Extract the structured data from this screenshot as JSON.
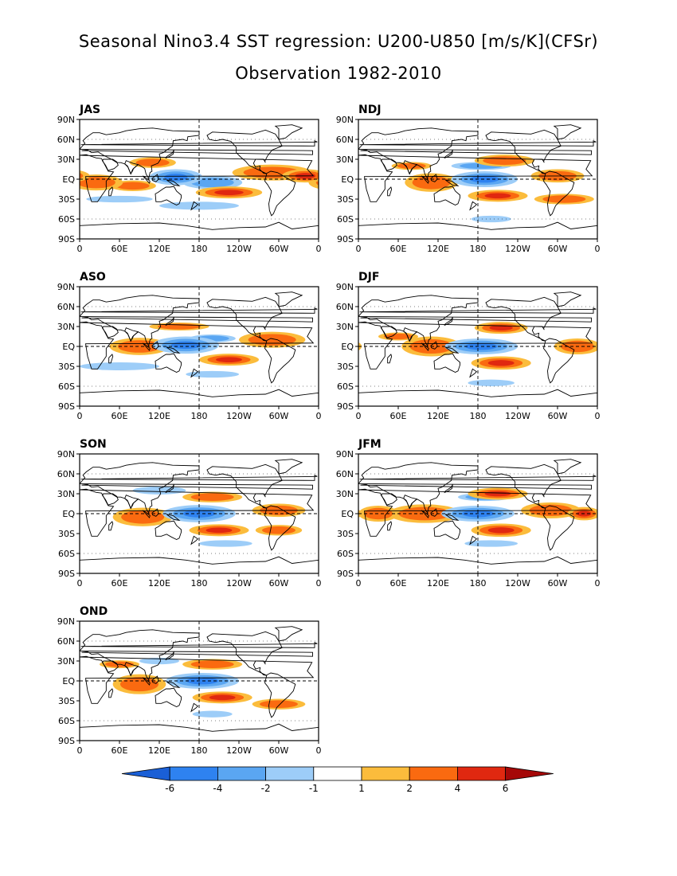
{
  "title": "Seasonal Nino3.4 SST regression: U200-U850 [m/s/K](CFSr)",
  "subtitle": "Observation 1982-2010",
  "chart_data": {
    "type": "heatmap",
    "lat_ticks": [
      "90N",
      "60N",
      "30N",
      "EQ",
      "30S",
      "60S",
      "90S"
    ],
    "lon_ticks": [
      "0",
      "60E",
      "120E",
      "180",
      "120W",
      "60W",
      "0"
    ],
    "colorbar": {
      "levels": [
        "-6",
        "-4",
        "-2",
        "-1",
        "1",
        "2",
        "4",
        "6"
      ],
      "colors": [
        "#1a5fd6",
        "#2e82f0",
        "#5aa6f2",
        "#9dcdf8",
        "#ffffff",
        "#fbbc3c",
        "#fa6a10",
        "#e02810",
        "#a50808"
      ]
    },
    "panels": [
      {
        "season": "JAS",
        "blobs": [
          {
            "lon": 145,
            "lat": 3,
            "rx": 40,
            "ry": 12,
            "v": -4
          },
          {
            "lon": 200,
            "lat": -5,
            "rx": 45,
            "ry": 10,
            "v": -2
          },
          {
            "lon": 290,
            "lat": 10,
            "rx": 60,
            "ry": 12,
            "v": 3
          },
          {
            "lon": 340,
            "lat": 5,
            "rx": 35,
            "ry": 10,
            "v": 4
          },
          {
            "lon": 25,
            "lat": -5,
            "rx": 40,
            "ry": 12,
            "v": 3
          },
          {
            "lon": 80,
            "lat": -10,
            "rx": 35,
            "ry": 8,
            "v": 2
          },
          {
            "lon": 110,
            "lat": 25,
            "rx": 35,
            "ry": 8,
            "v": 2
          },
          {
            "lon": 225,
            "lat": -20,
            "rx": 50,
            "ry": 9,
            "v": 4
          },
          {
            "lon": 180,
            "lat": -40,
            "rx": 60,
            "ry": 6,
            "v": -1.5
          },
          {
            "lon": 60,
            "lat": -30,
            "rx": 50,
            "ry": 5,
            "v": -1.5
          }
        ]
      },
      {
        "season": "NDJ",
        "blobs": [
          {
            "lon": 190,
            "lat": 0,
            "rx": 50,
            "ry": 12,
            "v": -4
          },
          {
            "lon": 185,
            "lat": 20,
            "rx": 45,
            "ry": 6,
            "v": -2
          },
          {
            "lon": 210,
            "lat": -25,
            "rx": 45,
            "ry": 9,
            "v": 4
          },
          {
            "lon": 220,
            "lat": 28,
            "rx": 45,
            "ry": 9,
            "v": 3
          },
          {
            "lon": 110,
            "lat": -5,
            "rx": 40,
            "ry": 14,
            "v": 3
          },
          {
            "lon": 300,
            "lat": 5,
            "rx": 40,
            "ry": 10,
            "v": 2
          },
          {
            "lon": 80,
            "lat": 20,
            "rx": 30,
            "ry": 6,
            "v": 2
          },
          {
            "lon": 310,
            "lat": -30,
            "rx": 45,
            "ry": 8,
            "v": 2
          },
          {
            "lon": 200,
            "lat": -60,
            "rx": 30,
            "ry": 5,
            "v": -1.5
          }
        ]
      },
      {
        "season": "ASO",
        "blobs": [
          {
            "lon": 160,
            "lat": 2,
            "rx": 50,
            "ry": 13,
            "v": -4
          },
          {
            "lon": 200,
            "lat": 12,
            "rx": 35,
            "ry": 6,
            "v": -2
          },
          {
            "lon": 290,
            "lat": 10,
            "rx": 50,
            "ry": 12,
            "v": 3
          },
          {
            "lon": 90,
            "lat": 0,
            "rx": 45,
            "ry": 13,
            "v": 3
          },
          {
            "lon": 225,
            "lat": -20,
            "rx": 45,
            "ry": 9,
            "v": 4
          },
          {
            "lon": 150,
            "lat": 30,
            "rx": 45,
            "ry": 6,
            "v": 2
          },
          {
            "lon": 60,
            "lat": -30,
            "rx": 60,
            "ry": 6,
            "v": -1.5
          },
          {
            "lon": 200,
            "lat": -42,
            "rx": 40,
            "ry": 5,
            "v": -1.5
          }
        ]
      },
      {
        "season": "DJF",
        "blobs": [
          {
            "lon": 185,
            "lat": 0,
            "rx": 55,
            "ry": 12,
            "v": -4
          },
          {
            "lon": 215,
            "lat": -25,
            "rx": 45,
            "ry": 10,
            "v": 4
          },
          {
            "lon": 215,
            "lat": 28,
            "rx": 40,
            "ry": 9,
            "v": 4
          },
          {
            "lon": 110,
            "lat": 0,
            "rx": 45,
            "ry": 15,
            "v": 3
          },
          {
            "lon": 330,
            "lat": 0,
            "rx": 35,
            "ry": 12,
            "v": 3
          },
          {
            "lon": 60,
            "lat": 15,
            "rx": 30,
            "ry": 6,
            "v": 2
          },
          {
            "lon": 200,
            "lat": -55,
            "rx": 35,
            "ry": 5,
            "v": -1.5
          }
        ]
      },
      {
        "season": "SON",
        "blobs": [
          {
            "lon": 180,
            "lat": 0,
            "rx": 55,
            "ry": 13,
            "v": -4
          },
          {
            "lon": 210,
            "lat": -25,
            "rx": 45,
            "ry": 9,
            "v": 4
          },
          {
            "lon": 200,
            "lat": 25,
            "rx": 45,
            "ry": 8,
            "v": 3
          },
          {
            "lon": 95,
            "lat": -5,
            "rx": 45,
            "ry": 14,
            "v": 3
          },
          {
            "lon": 300,
            "lat": 5,
            "rx": 40,
            "ry": 10,
            "v": 2
          },
          {
            "lon": 300,
            "lat": -25,
            "rx": 35,
            "ry": 8,
            "v": 2
          },
          {
            "lon": 120,
            "lat": 35,
            "rx": 40,
            "ry": 6,
            "v": -1.5
          },
          {
            "lon": 220,
            "lat": -45,
            "rx": 40,
            "ry": 5,
            "v": -1.5
          }
        ]
      },
      {
        "season": "JFM",
        "blobs": [
          {
            "lon": 180,
            "lat": 0,
            "rx": 55,
            "ry": 12,
            "v": -4
          },
          {
            "lon": 190,
            "lat": 25,
            "rx": 40,
            "ry": 6,
            "v": -2
          },
          {
            "lon": 215,
            "lat": -25,
            "rx": 45,
            "ry": 10,
            "v": 4
          },
          {
            "lon": 210,
            "lat": 30,
            "rx": 45,
            "ry": 9,
            "v": 4
          },
          {
            "lon": 100,
            "lat": 0,
            "rx": 55,
            "ry": 14,
            "v": 3
          },
          {
            "lon": 290,
            "lat": 5,
            "rx": 45,
            "ry": 12,
            "v": 3
          },
          {
            "lon": 340,
            "lat": 0,
            "rx": 25,
            "ry": 10,
            "v": 4
          },
          {
            "lon": 30,
            "lat": 0,
            "rx": 30,
            "ry": 12,
            "v": 3
          },
          {
            "lon": 200,
            "lat": -45,
            "rx": 40,
            "ry": 5,
            "v": -1.5
          }
        ]
      },
      {
        "season": "OND",
        "blobs": [
          {
            "lon": 185,
            "lat": 0,
            "rx": 55,
            "ry": 12,
            "v": -4
          },
          {
            "lon": 215,
            "lat": -25,
            "rx": 45,
            "ry": 9,
            "v": 4
          },
          {
            "lon": 200,
            "lat": 25,
            "rx": 45,
            "ry": 8,
            "v": 3
          },
          {
            "lon": 90,
            "lat": -5,
            "rx": 40,
            "ry": 15,
            "v": 3
          },
          {
            "lon": 300,
            "lat": -35,
            "rx": 40,
            "ry": 8,
            "v": 2
          },
          {
            "lon": 60,
            "lat": 25,
            "rx": 30,
            "ry": 6,
            "v": 2
          },
          {
            "lon": 120,
            "lat": 30,
            "rx": 30,
            "ry": 5,
            "v": -1.5
          },
          {
            "lon": 200,
            "lat": -50,
            "rx": 30,
            "ry": 5,
            "v": -1.5
          }
        ]
      }
    ]
  }
}
